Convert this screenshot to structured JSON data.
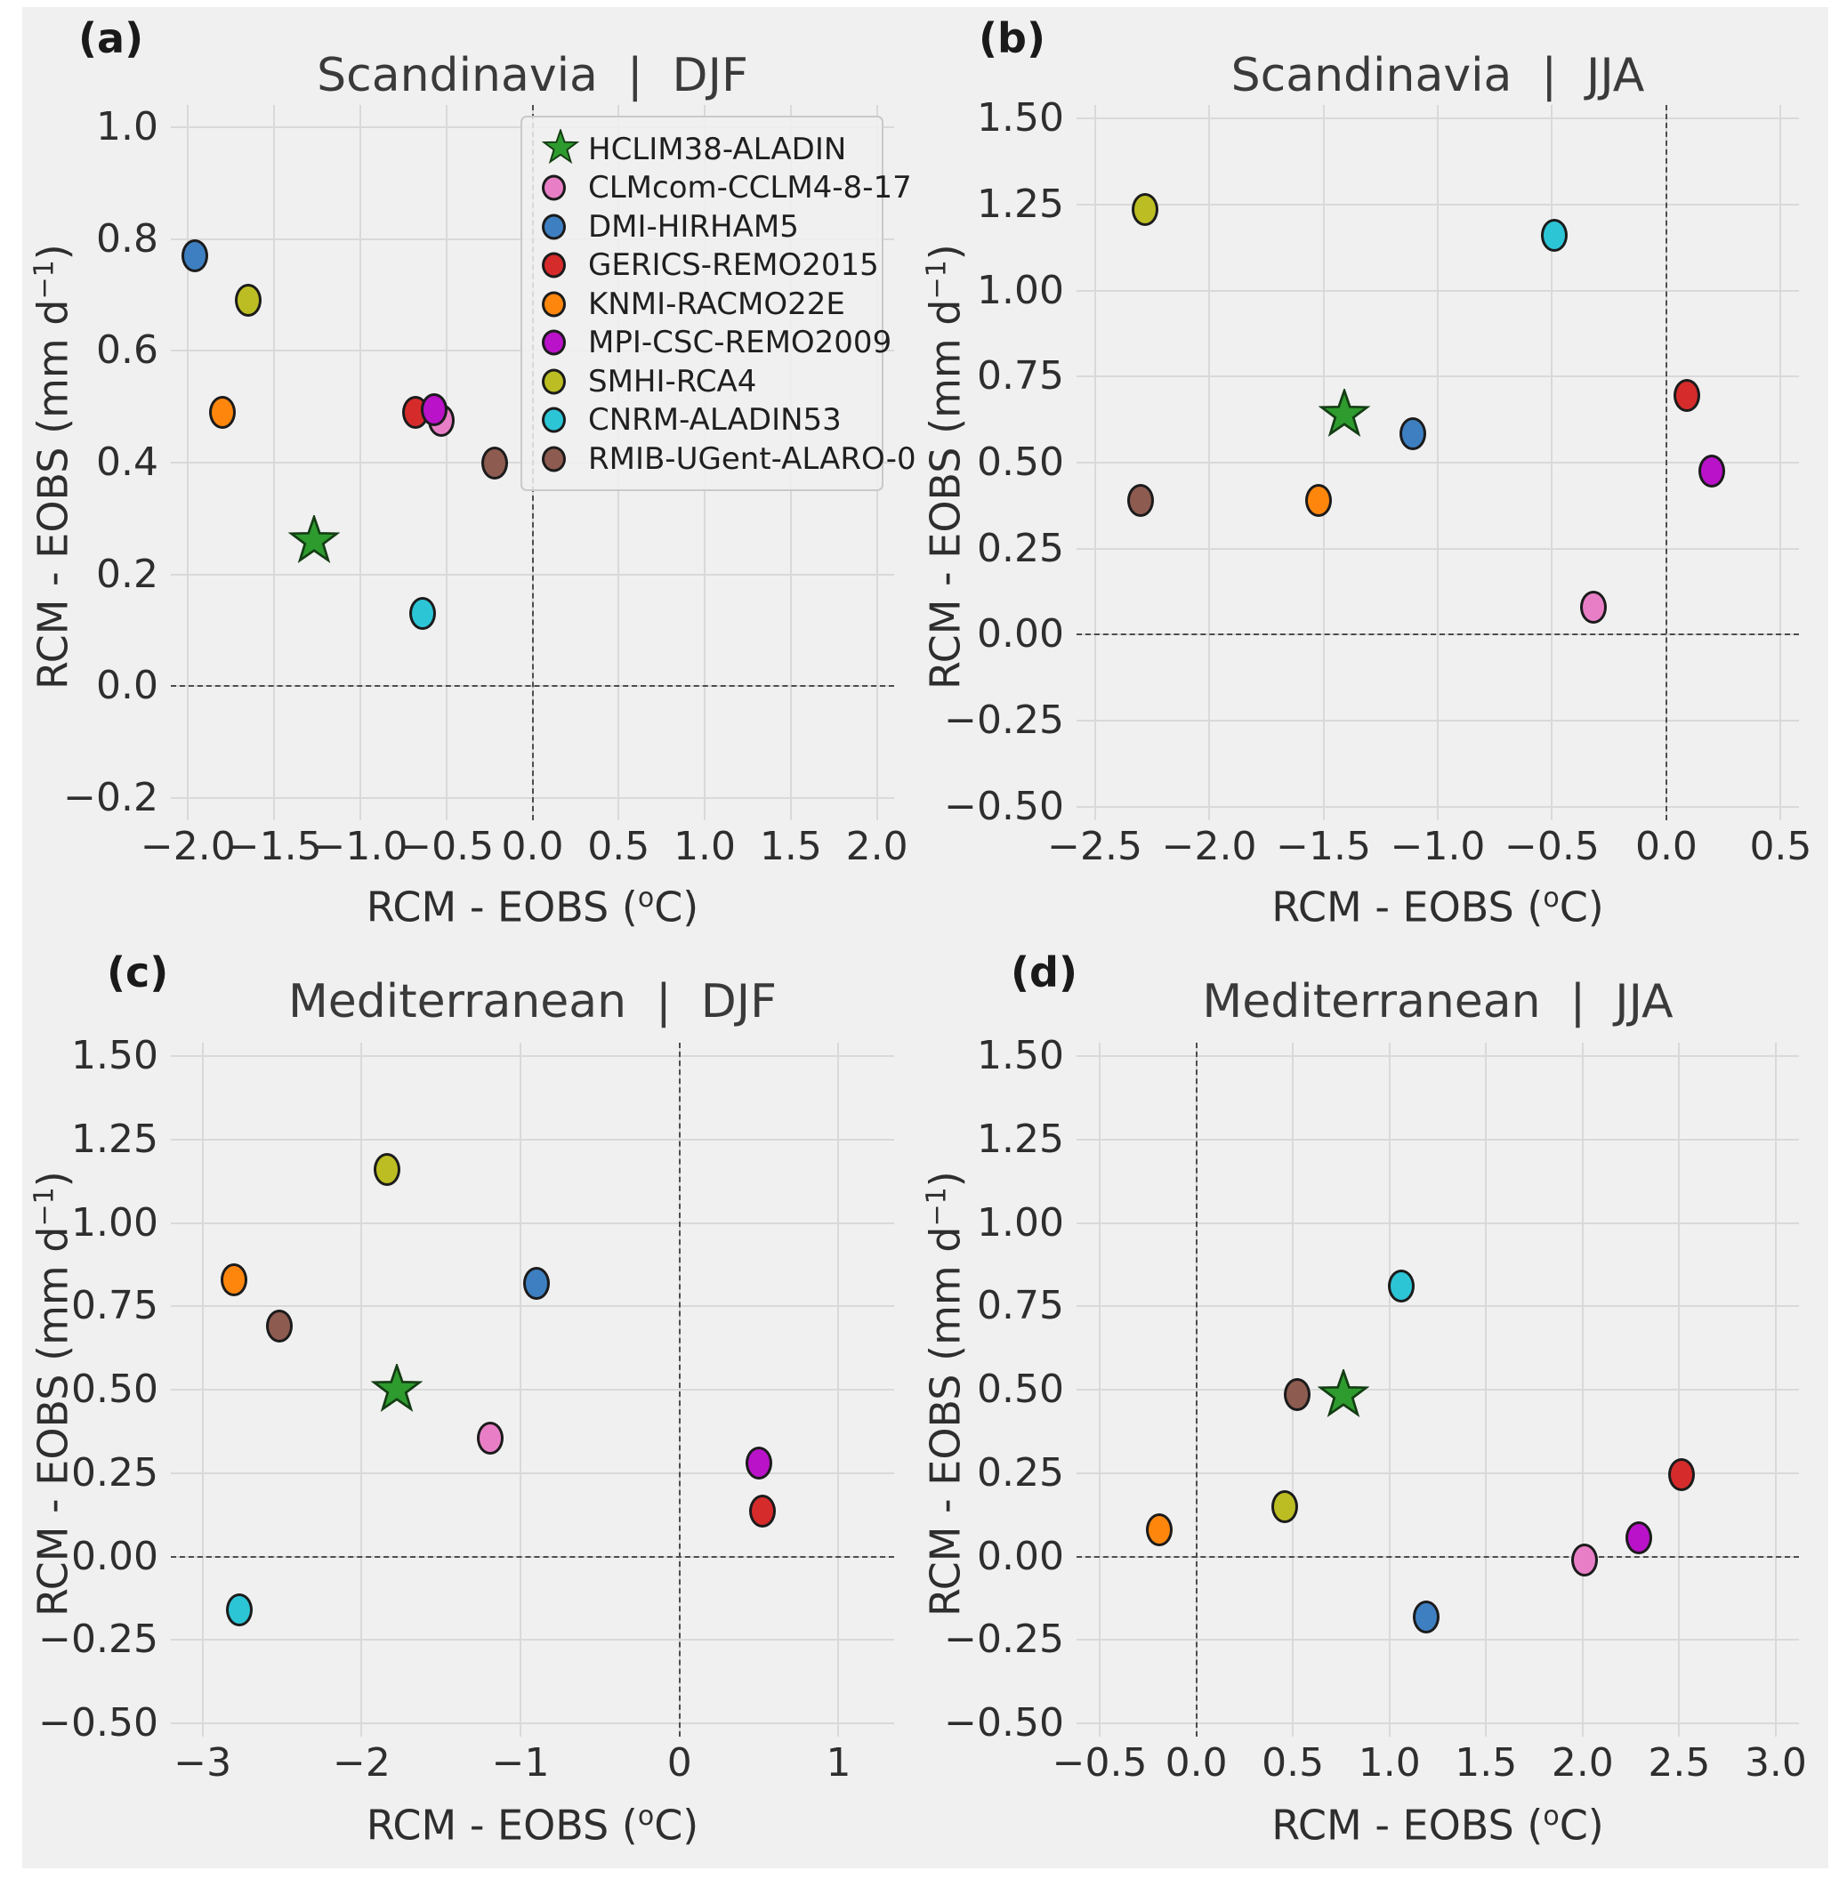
{
  "figure": {
    "background_color": "#f0f0f0",
    "page_color": "#ffffff",
    "grid_color": "#d9d9d9",
    "zero_line_color": "#4d4d4d",
    "text_color": "#262626",
    "marker_edge_color": "#1b1b1b"
  },
  "legend": {
    "items": [
      {
        "label": "HCLIM38-ALADIN",
        "marker": "star",
        "color": "#2e9b2e",
        "edge": "#143d14"
      },
      {
        "label": "CLMcom-CCLM4-8-17",
        "marker": "circle",
        "color": "#e87fc6",
        "edge": "#1b1b1b"
      },
      {
        "label": "DMI-HIRHAM5",
        "marker": "circle",
        "color": "#3d7fc1",
        "edge": "#1b1b1b"
      },
      {
        "label": "GERICS-REMO2015",
        "marker": "circle",
        "color": "#d62b2b",
        "edge": "#1b1b1b"
      },
      {
        "label": "KNMI-RACMO22E",
        "marker": "circle",
        "color": "#ff860d",
        "edge": "#1b1b1b"
      },
      {
        "label": "MPI-CSC-REMO2009",
        "marker": "circle",
        "color": "#b912c9",
        "edge": "#1b1b1b"
      },
      {
        "label": "SMHI-RCA4",
        "marker": "circle",
        "color": "#bcbd22",
        "edge": "#1b1b1b"
      },
      {
        "label": "CNRM-ALADIN53",
        "marker": "circle",
        "color": "#2cc5d6",
        "edge": "#1b1b1b"
      },
      {
        "label": "RMIB-UGent-ALARO-0",
        "marker": "circle",
        "color": "#8d5b50",
        "edge": "#1b1b1b"
      }
    ]
  },
  "axis_labels": {
    "x": {
      "pre": "RCM - EOBS (",
      "sup": "o",
      "post": "C)"
    },
    "y": {
      "pre": "RCM - EOBS (mm d",
      "sup": "−1",
      "post": ")"
    }
  },
  "chart_data": [
    {
      "id": "a",
      "type": "scatter",
      "letter": "(a)",
      "title": "Scandinavia  |  DJF",
      "xlabel": "RCM - EOBS (°C)",
      "ylabel": "RCM - EOBS (mm d⁻¹)",
      "xlim": [
        -2.1,
        2.1
      ],
      "ylim": [
        -0.24,
        1.04
      ],
      "xticks": [
        -2.0,
        -1.5,
        -1.0,
        -0.5,
        0.0,
        0.5,
        1.0,
        1.5,
        2.0
      ],
      "xtick_labels": [
        "−2.0",
        "−1.5",
        "−1.0",
        "−0.5",
        "0.0",
        "0.5",
        "1.0",
        "1.5",
        "2.0"
      ],
      "yticks": [
        1.0,
        0.8,
        0.6,
        0.4,
        0.2,
        0.0,
        -0.2
      ],
      "ytick_labels": [
        "1.0",
        "0.8",
        "0.6",
        "0.4",
        "0.2",
        "0.0",
        "−0.2"
      ],
      "zero_lines": true,
      "show_legend": true,
      "grid": true,
      "legend_position": "upper right",
      "points": [
        {
          "model": "HCLIM38-ALADIN",
          "x": -1.27,
          "y": 0.26
        },
        {
          "model": "CLMcom-CCLM4-8-17",
          "x": -0.53,
          "y": 0.475
        },
        {
          "model": "DMI-HIRHAM5",
          "x": -1.96,
          "y": 0.77
        },
        {
          "model": "GERICS-REMO2015",
          "x": -0.68,
          "y": 0.49
        },
        {
          "model": "KNMI-RACMO22E",
          "x": -1.8,
          "y": 0.49
        },
        {
          "model": "MPI-CSC-REMO2009",
          "x": -0.57,
          "y": 0.495
        },
        {
          "model": "SMHI-RCA4",
          "x": -1.65,
          "y": 0.69
        },
        {
          "model": "CNRM-ALADIN53",
          "x": -0.64,
          "y": 0.13
        },
        {
          "model": "RMIB-UGent-ALARO-0",
          "x": -0.22,
          "y": 0.4
        }
      ]
    },
    {
      "id": "b",
      "type": "scatter",
      "letter": "(b)",
      "title": "Scandinavia  |  JJA",
      "xlabel": "RCM - EOBS (°C)",
      "ylabel": "RCM - EOBS (mm d⁻¹)",
      "xlim": [
        -2.58,
        0.58
      ],
      "ylim": [
        -0.54,
        1.54
      ],
      "xticks": [
        -2.5,
        -2.0,
        -1.5,
        -1.0,
        -0.5,
        0.0,
        0.5
      ],
      "xtick_labels": [
        "−2.5",
        "−2.0",
        "−1.5",
        "−1.0",
        "−0.5",
        "0.0",
        "0.5"
      ],
      "yticks": [
        1.5,
        1.25,
        1.0,
        0.75,
        0.5,
        0.25,
        0.0,
        -0.25,
        -0.5
      ],
      "ytick_labels": [
        "1.50",
        "1.25",
        "1.00",
        "0.75",
        "0.50",
        "0.25",
        "0.00",
        "−0.25",
        "−0.50"
      ],
      "zero_lines": true,
      "show_legend": false,
      "grid": true,
      "points": [
        {
          "model": "HCLIM38-ALADIN",
          "x": -1.41,
          "y": 0.64
        },
        {
          "model": "CLMcom-CCLM4-8-17",
          "x": -0.32,
          "y": 0.08
        },
        {
          "model": "DMI-HIRHAM5",
          "x": -1.11,
          "y": 0.585
        },
        {
          "model": "GERICS-REMO2015",
          "x": 0.09,
          "y": 0.695
        },
        {
          "model": "KNMI-RACMO22E",
          "x": -1.52,
          "y": 0.39
        },
        {
          "model": "MPI-CSC-REMO2009",
          "x": 0.2,
          "y": 0.475
        },
        {
          "model": "SMHI-RCA4",
          "x": -2.28,
          "y": 1.235
        },
        {
          "model": "CNRM-ALADIN53",
          "x": -0.49,
          "y": 1.16
        },
        {
          "model": "RMIB-UGent-ALARO-0",
          "x": -2.3,
          "y": 0.39
        }
      ]
    },
    {
      "id": "c",
      "type": "scatter",
      "letter": "(c)",
      "title": "Mediterranean  |  DJF",
      "xlabel": "RCM - EOBS (°C)",
      "ylabel": "RCM - EOBS (mm d⁻¹)",
      "xlim": [
        -3.2,
        1.35
      ],
      "ylim": [
        -0.54,
        1.54
      ],
      "xticks": [
        -3,
        -2,
        -1,
        0,
        1
      ],
      "xtick_labels": [
        "−3",
        "−2",
        "−1",
        "0",
        "1"
      ],
      "yticks": [
        1.5,
        1.25,
        1.0,
        0.75,
        0.5,
        0.25,
        0.0,
        -0.25,
        -0.5
      ],
      "ytick_labels": [
        "1.50",
        "1.25",
        "1.00",
        "0.75",
        "0.50",
        "0.25",
        "0.00",
        "−0.25",
        "−0.50"
      ],
      "zero_lines": true,
      "show_legend": false,
      "grid": true,
      "points": [
        {
          "model": "HCLIM38-ALADIN",
          "x": -1.78,
          "y": 0.5
        },
        {
          "model": "CLMcom-CCLM4-8-17",
          "x": -1.19,
          "y": 0.355
        },
        {
          "model": "DMI-HIRHAM5",
          "x": -0.9,
          "y": 0.82
        },
        {
          "model": "GERICS-REMO2015",
          "x": 0.52,
          "y": 0.135
        },
        {
          "model": "KNMI-RACMO22E",
          "x": -2.8,
          "y": 0.83
        },
        {
          "model": "MPI-CSC-REMO2009",
          "x": 0.5,
          "y": 0.28
        },
        {
          "model": "SMHI-RCA4",
          "x": -1.84,
          "y": 1.16
        },
        {
          "model": "CNRM-ALADIN53",
          "x": -2.77,
          "y": -0.16
        },
        {
          "model": "RMIB-UGent-ALARO-0",
          "x": -2.52,
          "y": 0.69
        }
      ]
    },
    {
      "id": "d",
      "type": "scatter",
      "letter": "(d)",
      "title": "Mediterranean  |  JJA",
      "xlabel": "RCM - EOBS (°C)",
      "ylabel": "RCM - EOBS (mm d⁻¹)",
      "xlim": [
        -0.62,
        3.12
      ],
      "ylim": [
        -0.54,
        1.54
      ],
      "xticks": [
        -0.5,
        0.0,
        0.5,
        1.0,
        1.5,
        2.0,
        2.5,
        3.0
      ],
      "xtick_labels": [
        "−0.5",
        "0.0",
        "0.5",
        "1.0",
        "1.5",
        "2.0",
        "2.5",
        "3.0"
      ],
      "yticks": [
        1.5,
        1.25,
        1.0,
        0.75,
        0.5,
        0.25,
        0.0,
        -0.25,
        -0.5
      ],
      "ytick_labels": [
        "1.50",
        "1.25",
        "1.00",
        "0.75",
        "0.50",
        "0.25",
        "0.00",
        "−0.25",
        "−0.50"
      ],
      "zero_lines": true,
      "show_legend": false,
      "grid": true,
      "points": [
        {
          "model": "HCLIM38-ALADIN",
          "x": 0.76,
          "y": 0.485
        },
        {
          "model": "CLMcom-CCLM4-8-17",
          "x": 2.01,
          "y": -0.01
        },
        {
          "model": "DMI-HIRHAM5",
          "x": 1.19,
          "y": -0.18
        },
        {
          "model": "GERICS-REMO2015",
          "x": 2.51,
          "y": 0.245
        },
        {
          "model": "KNMI-RACMO22E",
          "x": -0.19,
          "y": 0.08
        },
        {
          "model": "MPI-CSC-REMO2009",
          "x": 2.29,
          "y": 0.055
        },
        {
          "model": "SMHI-RCA4",
          "x": 0.46,
          "y": 0.15
        },
        {
          "model": "CNRM-ALADIN53",
          "x": 1.06,
          "y": 0.81
        },
        {
          "model": "RMIB-UGent-ALARO-0",
          "x": 0.52,
          "y": 0.485
        }
      ]
    }
  ]
}
